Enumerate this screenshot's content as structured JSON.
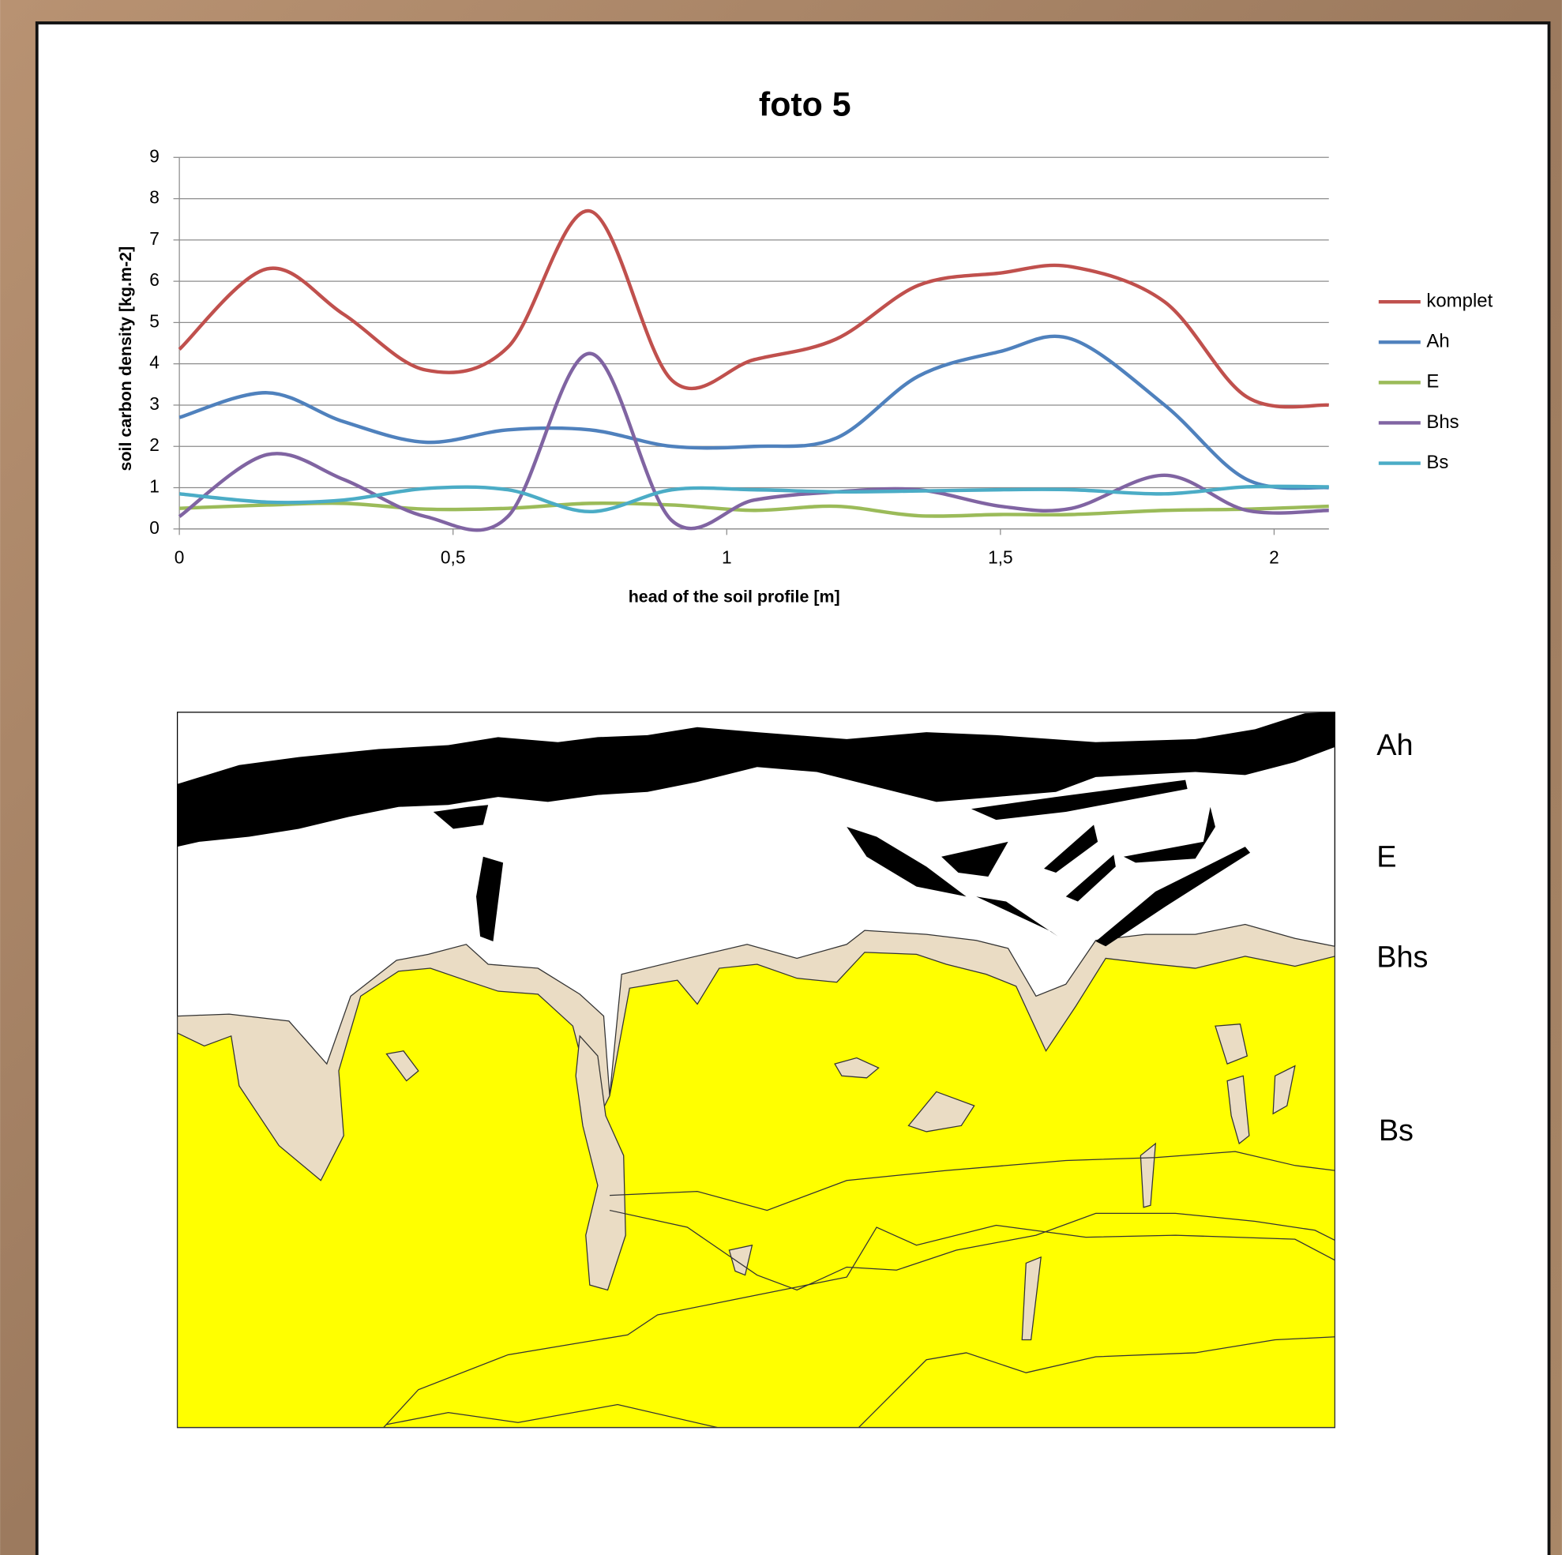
{
  "chart_data": {
    "type": "line",
    "title": "foto 5",
    "x_label": "head of the soil profile [m]",
    "y_label": "soil carbon density [kg.m-2]",
    "x": [
      0,
      0.16,
      0.3,
      0.45,
      0.6,
      0.75,
      0.9,
      1.05,
      1.2,
      1.35,
      1.5,
      1.63,
      1.8,
      1.95,
      2.1
    ],
    "series": [
      {
        "name": "komplet",
        "color": "#c0504d",
        "values": [
          4.35,
          6.3,
          5.2,
          3.85,
          4.4,
          7.7,
          3.6,
          4.1,
          4.6,
          5.9,
          6.2,
          6.35,
          5.5,
          3.2,
          3.0
        ]
      },
      {
        "name": "Ah",
        "color": "#4f81bd",
        "values": [
          2.7,
          3.3,
          2.6,
          2.1,
          2.4,
          2.4,
          2.0,
          2.0,
          2.2,
          3.7,
          4.3,
          4.6,
          3.0,
          1.2,
          1.0
        ]
      },
      {
        "name": "E",
        "color": "#9bbb59",
        "values": [
          0.5,
          0.58,
          0.62,
          0.48,
          0.5,
          0.62,
          0.58,
          0.45,
          0.55,
          0.32,
          0.35,
          0.35,
          0.45,
          0.48,
          0.55
        ]
      },
      {
        "name": "Bhs",
        "color": "#8064a2",
        "values": [
          0.3,
          1.8,
          1.2,
          0.3,
          0.3,
          4.25,
          0.2,
          0.7,
          0.9,
          0.95,
          0.55,
          0.5,
          1.3,
          0.45,
          0.45
        ]
      },
      {
        "name": "Bs",
        "color": "#4bacc6",
        "values": [
          0.85,
          0.65,
          0.7,
          0.98,
          0.95,
          0.42,
          0.95,
          0.95,
          0.9,
          0.92,
          0.95,
          0.95,
          0.85,
          1.02,
          1.02
        ]
      }
    ],
    "xlim": [
      0,
      2.1
    ],
    "xticks": [
      0,
      {
        "value": 0.5,
        "label": "0,5"
      },
      1,
      {
        "value": 1.5,
        "label": "1,5"
      },
      2
    ],
    "ylim": [
      0,
      9
    ],
    "yticks": [
      0,
      1,
      2,
      3,
      4,
      5,
      6,
      7,
      8,
      9
    ],
    "grid": true,
    "legend": "right"
  },
  "profile": {
    "labels": [
      "Ah",
      "E",
      "Bhs",
      "Bs"
    ]
  }
}
